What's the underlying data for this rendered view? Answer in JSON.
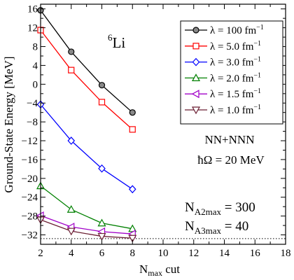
{
  "chart_data": {
    "type": "line",
    "xlabel": "N",
    "xlabel_sub": "max",
    "xlabel_suffix": " cut",
    "ylabel": "Ground-State Energy [MeV]",
    "xlim": [
      2,
      18
    ],
    "ylim": [
      -34,
      17
    ],
    "xticks": [
      2,
      4,
      6,
      8,
      10,
      12,
      14,
      16,
      18
    ],
    "yticks": [
      16,
      12,
      8,
      4,
      0,
      -4,
      -8,
      -12,
      -16,
      -20,
      -24,
      -28,
      -32
    ],
    "xtick_labels": [
      "2",
      "4",
      "6",
      "8",
      "10",
      "12",
      "14",
      "16",
      "18"
    ],
    "ytick_labels": [
      "16",
      "12",
      "8",
      "4",
      "0",
      "−4",
      "−8",
      "−12",
      "−16",
      "−20",
      "−24",
      "−28",
      "−32"
    ],
    "reference_line": {
      "y": -32.8,
      "style": "dotted"
    },
    "series": [
      {
        "name": "λ = 100 fm⁻¹",
        "color": "#000000",
        "fill": "#888888",
        "marker": "circle",
        "x": [
          2,
          4,
          6,
          8
        ],
        "values": [
          15.7,
          6.9,
          -0.2,
          -6.0
        ]
      },
      {
        "name": "λ = 5.0 fm⁻¹",
        "color": "#ff0000",
        "fill": "#ffffff",
        "marker": "square",
        "x": [
          2,
          4,
          6,
          8
        ],
        "values": [
          11.5,
          3.0,
          -3.8,
          -9.6
        ]
      },
      {
        "name": "λ = 3.0 fm⁻¹",
        "color": "#0000ff",
        "fill": "#ffffff",
        "marker": "diamond",
        "x": [
          2,
          4,
          6,
          8
        ],
        "values": [
          -4.3,
          -12.0,
          -17.9,
          -22.3
        ]
      },
      {
        "name": "λ = 2.0 fm⁻¹",
        "color": "#008000",
        "fill": "#ffffff",
        "marker": "triangle-up",
        "x": [
          2,
          4,
          6,
          8
        ],
        "values": [
          -21.6,
          -26.6,
          -29.5,
          -30.7
        ]
      },
      {
        "name": "λ = 1.5 fm⁻¹",
        "color": "#a000c8",
        "fill": "#ffffff",
        "marker": "triangle-left",
        "x": [
          2,
          4,
          6,
          8
        ],
        "values": [
          -27.9,
          -30.3,
          -31.3,
          -31.8
        ]
      },
      {
        "name": "λ = 1.0 fm⁻¹",
        "color": "#6b1f33",
        "fill": "#ffffff",
        "marker": "triangle-down",
        "x": [
          2,
          4,
          6,
          8
        ],
        "values": [
          -28.8,
          -31.2,
          -32.3,
          -32.7
        ]
      }
    ],
    "legend_placement": "top-right"
  },
  "annotations": {
    "nucleus_mass": "6",
    "nucleus_symbol": "Li",
    "interaction": "NN+NNN",
    "hbar_omega": "ħΩ = 20 MeV",
    "na2_prefix": "N",
    "na2_sub": "A2max",
    "na2_suffix": " = 300",
    "na3_prefix": "N",
    "na3_sub": "A3max",
    "na3_suffix": " = 40"
  },
  "legend": {
    "entries": [
      {
        "prefix": "λ = 100 fm",
        "sup": "−1"
      },
      {
        "prefix": "λ = 5.0 fm",
        "sup": "−1"
      },
      {
        "prefix": "λ = 3.0 fm",
        "sup": "−1"
      },
      {
        "prefix": "λ = 2.0 fm",
        "sup": "−1"
      },
      {
        "prefix": "λ = 1.5 fm",
        "sup": "−1"
      },
      {
        "prefix": "λ = 1.0 fm",
        "sup": "−1"
      }
    ]
  }
}
